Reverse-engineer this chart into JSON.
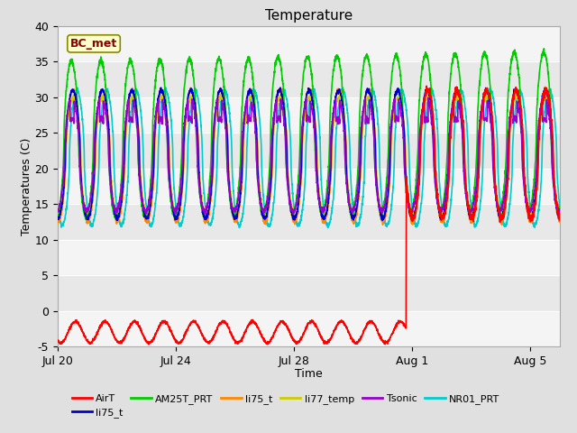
{
  "title": "Temperature",
  "xlabel": "Time",
  "ylabel": "Temperatures (C)",
  "ylim": [
    -5,
    40
  ],
  "xlim": [
    0,
    17
  ],
  "xtick_positions": [
    0,
    4,
    8,
    12,
    16
  ],
  "xtick_labels": [
    "Jul 20",
    "Jul 24",
    "Jul 28",
    "Aug 1",
    "Aug 5"
  ],
  "ytick_positions": [
    -5,
    0,
    5,
    10,
    15,
    20,
    25,
    30,
    35,
    40
  ],
  "bg_outer": "#e0e0e0",
  "bg_inner_light": "#f4f4f4",
  "bg_inner_dark": "#e0e0e0",
  "annotation_label": "BC_met",
  "annotation_color": "#880000",
  "annotation_bg": "#ffffcc",
  "series": {
    "AirT": {
      "color": "#ff0000",
      "lw": 1.2
    },
    "li75_t": {
      "color": "#0000cc",
      "lw": 1.2
    },
    "AM25T_PRT": {
      "color": "#00cc00",
      "lw": 1.2
    },
    "li75_t2": {
      "color": "#ff8800",
      "lw": 1.2
    },
    "li77_temp": {
      "color": "#cccc00",
      "lw": 1.2
    },
    "Tsonic": {
      "color": "#9900cc",
      "lw": 1.2
    },
    "NR01_PRT": {
      "color": "#00cccc",
      "lw": 1.2
    }
  },
  "legend_entries": [
    {
      "label": "AirT",
      "color": "#ff0000"
    },
    {
      "label": "li75_t",
      "color": "#0000cc"
    },
    {
      "label": "AM25T_PRT",
      "color": "#00cc00"
    },
    {
      "label": "li75_t",
      "color": "#ff8800"
    },
    {
      "label": "li77_temp",
      "color": "#cccc00"
    },
    {
      "label": "Tsonic",
      "color": "#9900cc"
    },
    {
      "label": "NR01_PRT",
      "color": "#00cccc"
    }
  ],
  "grid_color": "#ffffff",
  "grid_lw": 0.8
}
